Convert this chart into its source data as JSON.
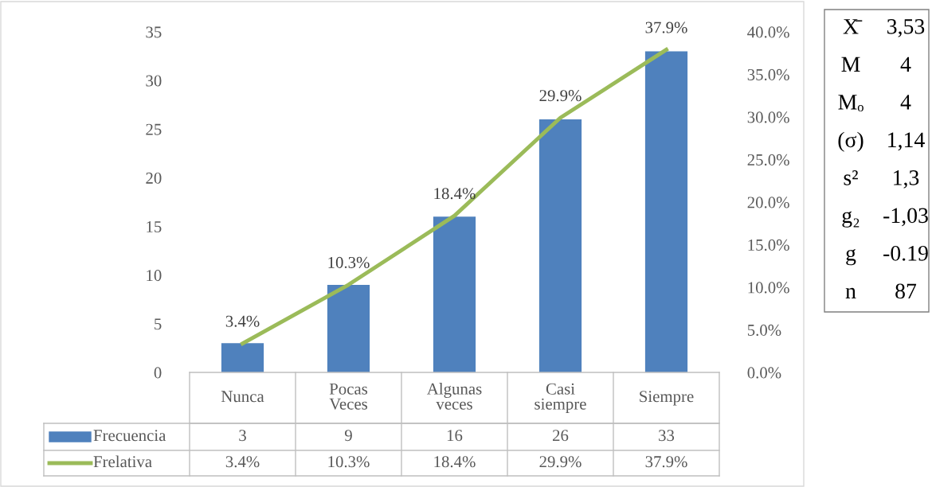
{
  "chart_data": {
    "type": "bar",
    "categories": [
      "Nunca",
      "Pocas Veces",
      "Algunas veces",
      "Casi siempre",
      "Siempre"
    ],
    "series": [
      {
        "name": "Frecuencia",
        "color": "#4f81bd",
        "values": [
          3,
          9,
          16,
          26,
          33
        ]
      },
      {
        "name": "Frelativa",
        "type": "line",
        "axis": "y2",
        "color": "#9bbb59",
        "values": [
          3.4,
          10.3,
          18.4,
          29.9,
          37.9
        ],
        "value_labels": [
          "3.4%",
          "10.3%",
          "18.4%",
          "29.9%",
          "37.9%"
        ]
      }
    ],
    "ylim": [
      0,
      35
    ],
    "yticks": [
      0,
      5,
      10,
      15,
      20,
      25,
      30,
      35
    ],
    "y2lim": [
      0,
      40
    ],
    "y2ticks": [
      {
        "value": 0,
        "label": "0.0%"
      },
      {
        "value": 5,
        "label": "5.0%"
      },
      {
        "value": 10,
        "label": "10.0%"
      },
      {
        "value": 15,
        "label": "15.0%"
      },
      {
        "value": 20,
        "label": "20.0%"
      },
      {
        "value": 25,
        "label": "25.0%"
      },
      {
        "value": 30,
        "label": "30.0%"
      },
      {
        "value": 35,
        "label": "35.0%"
      },
      {
        "value": 40,
        "label": "40.0%"
      }
    ],
    "data_labels": true,
    "legend": "bottom",
    "grid": false,
    "marker": "none",
    "line_style": "solid",
    "annotations": [
      "X̄ 3,53",
      "M 4",
      "Mₒ 4",
      "(σ) 1,14",
      "s² 1,3",
      "g₂ -1,03",
      "g -0.19",
      "n 87"
    ]
  }
}
